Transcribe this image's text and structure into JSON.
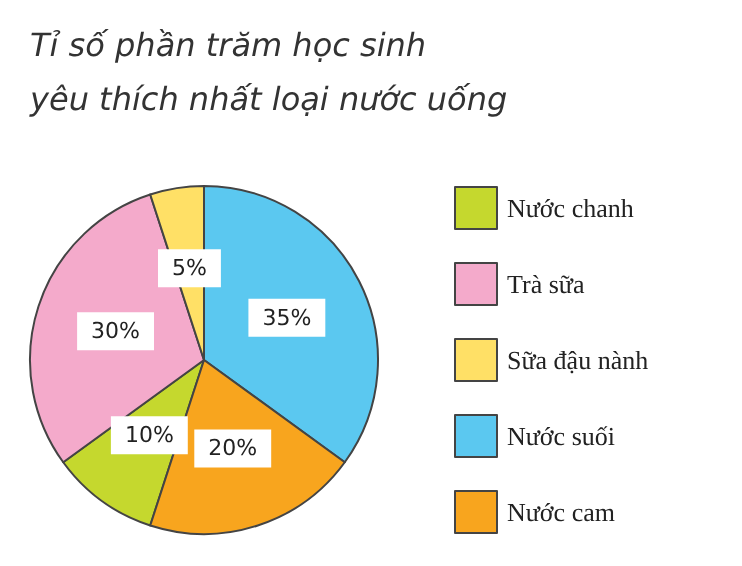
{
  "chart_data": {
    "type": "pie",
    "title": "Tỉ số phần trăm học sinh\nyêu thích nhất loại nước uống",
    "categories": [
      "Nước chanh",
      "Trà sữa",
      "Sữa đậu nành",
      "Nước suối",
      "Nước cam"
    ],
    "values": [
      10,
      30,
      5,
      35,
      20
    ],
    "colors": [
      "#c5d82e",
      "#f4aacb",
      "#ffe066",
      "#5bc8f0",
      "#f8a51e"
    ],
    "value_labels": [
      "10%",
      "30%",
      "5%",
      "35%",
      "20%"
    ],
    "legend": "right"
  }
}
